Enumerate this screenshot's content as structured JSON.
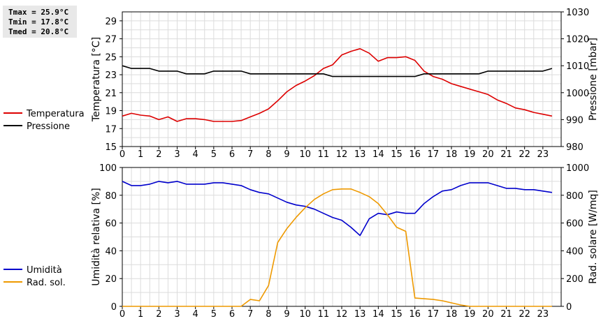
{
  "stats": {
    "tmax": "Tmax = 25.9°C",
    "tmin": "Tmin = 17.8°C",
    "tmed": "Tmed = 20.8°C"
  },
  "chart_data": [
    {
      "type": "line",
      "x": [
        0,
        0.5,
        1,
        1.5,
        2,
        2.5,
        3,
        3.5,
        4,
        4.5,
        5,
        5.5,
        6,
        6.5,
        7,
        7.5,
        8,
        8.5,
        9,
        9.5,
        10,
        10.5,
        11,
        11.5,
        12,
        12.5,
        13,
        13.5,
        14,
        14.5,
        15,
        15.5,
        16,
        16.5,
        17,
        17.5,
        18,
        18.5,
        19,
        19.5,
        20,
        20.5,
        21,
        21.5,
        22,
        22.5,
        23,
        23.5
      ],
      "xticks": [
        0,
        1,
        2,
        3,
        4,
        5,
        6,
        7,
        8,
        9,
        10,
        11,
        12,
        13,
        14,
        15,
        16,
        17,
        18,
        19,
        20,
        21,
        22,
        23
      ],
      "xlim": [
        0,
        24
      ],
      "ylabel": "Temperatura [°C]",
      "ylim": [
        15,
        30
      ],
      "yticks": [
        15,
        17,
        19,
        21,
        23,
        25,
        27,
        29
      ],
      "y2label": "Pressione [mbar]",
      "y2lim": [
        980,
        1030
      ],
      "y2ticks": [
        980,
        990,
        1000,
        1010,
        1020,
        1030
      ],
      "grid": true,
      "legend": "left",
      "series": [
        {
          "name": "Temperatura",
          "axis": "left",
          "color": "#dd0000",
          "values": [
            18.4,
            18.7,
            18.5,
            18.4,
            18.0,
            18.3,
            17.8,
            18.1,
            18.1,
            18.0,
            17.8,
            17.8,
            17.8,
            17.9,
            18.3,
            18.7,
            19.2,
            20.1,
            21.1,
            21.8,
            22.3,
            22.9,
            23.7,
            24.1,
            25.2,
            25.6,
            25.9,
            25.4,
            24.5,
            24.9,
            24.9,
            25.0,
            24.6,
            23.4,
            22.8,
            22.5,
            22.0,
            21.7,
            21.4,
            21.1,
            20.8,
            20.2,
            19.8,
            19.3,
            19.1,
            18.8,
            18.6,
            18.4
          ]
        },
        {
          "name": "Pressione",
          "axis": "right",
          "color": "#000000",
          "values": [
            1010,
            1009,
            1009,
            1009,
            1008,
            1008,
            1008,
            1007,
            1007,
            1007,
            1008,
            1008,
            1008,
            1008,
            1007,
            1007,
            1007,
            1007,
            1007,
            1007,
            1007,
            1007,
            1007,
            1006,
            1006,
            1006,
            1006,
            1006,
            1006,
            1006,
            1006,
            1006,
            1006,
            1007,
            1007,
            1007,
            1007,
            1007,
            1007,
            1007,
            1008,
            1008,
            1008,
            1008,
            1008,
            1008,
            1008,
            1009
          ]
        }
      ]
    },
    {
      "type": "line",
      "x": [
        0,
        0.5,
        1,
        1.5,
        2,
        2.5,
        3,
        3.5,
        4,
        4.5,
        5,
        5.5,
        6,
        6.5,
        7,
        7.5,
        8,
        8.5,
        9,
        9.5,
        10,
        10.5,
        11,
        11.5,
        12,
        12.5,
        13,
        13.5,
        14,
        14.5,
        15,
        15.5,
        16,
        16.5,
        17,
        17.5,
        18,
        18.5,
        19,
        19.5,
        20,
        20.5,
        21,
        21.5,
        22,
        22.5,
        23,
        23.5
      ],
      "xticks": [
        0,
        1,
        2,
        3,
        4,
        5,
        6,
        7,
        8,
        9,
        10,
        11,
        12,
        13,
        14,
        15,
        16,
        17,
        18,
        19,
        20,
        21,
        22,
        23
      ],
      "xlim": [
        0,
        24
      ],
      "ylabel": "Umidità relativa [%]",
      "ylim": [
        0,
        100
      ],
      "yticks": [
        0,
        20,
        40,
        60,
        80,
        100
      ],
      "y2label": "Rad. solare [W/mq]",
      "y2lim": [
        0,
        1000
      ],
      "y2ticks": [
        0,
        200,
        400,
        600,
        800,
        1000
      ],
      "grid": true,
      "legend": "left",
      "series": [
        {
          "name": "Umidità",
          "axis": "left",
          "color": "#0000cc",
          "values": [
            90,
            87,
            87,
            88,
            90,
            89,
            90,
            88,
            88,
            88,
            89,
            89,
            88,
            87,
            84,
            82,
            81,
            78,
            75,
            73,
            72,
            70,
            67,
            64,
            62,
            57,
            51,
            63,
            67,
            66,
            68,
            67,
            67,
            74,
            79,
            83,
            84,
            87,
            89,
            89,
            89,
            87,
            85,
            85,
            84,
            84,
            83,
            82
          ]
        },
        {
          "name": "Rad. sol.",
          "axis": "right",
          "color": "#ee9900",
          "values": [
            0,
            0,
            0,
            0,
            0,
            0,
            0,
            0,
            0,
            0,
            0,
            0,
            0,
            0,
            50,
            40,
            150,
            460,
            560,
            640,
            710,
            770,
            810,
            840,
            845,
            845,
            820,
            790,
            740,
            660,
            570,
            540,
            60,
            55,
            50,
            40,
            25,
            10,
            0,
            0,
            0,
            0,
            0,
            0,
            0,
            0,
            0,
            0
          ]
        }
      ]
    }
  ]
}
